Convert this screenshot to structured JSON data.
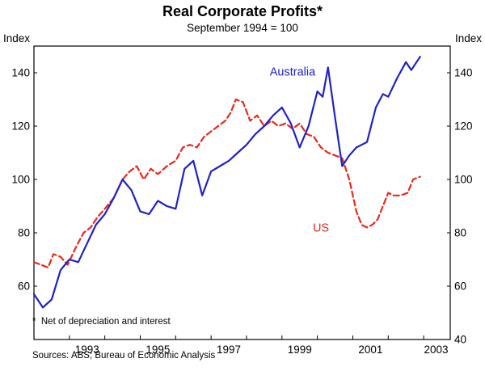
{
  "header": {
    "title": "Real Corporate Profits*",
    "subtitle": "September 1994 = 100"
  },
  "axis_units": {
    "left": "Index",
    "right": "Index"
  },
  "footnotes": {
    "note": "*  Net of depreciation and interest",
    "sources": "Sources: ABS; Bureau of Economic Analysis"
  },
  "colors": {
    "australia": "#2121c8",
    "us": "#e8291d",
    "axis": "#000000"
  },
  "chart_data": {
    "type": "line",
    "title": "Real Corporate Profits*",
    "subtitle": "September 1994 = 100",
    "y_unit": "Index",
    "ylim": [
      40,
      150
    ],
    "xlim": [
      1992,
      2003.75
    ],
    "grid": false,
    "legend": "inline-annotations",
    "y_ticks_left": [
      60,
      80,
      100,
      120,
      140
    ],
    "y_ticks_right": [
      40,
      60,
      80,
      100,
      120,
      140
    ],
    "x_ticks": [
      1993,
      1994,
      1995,
      1996,
      1997,
      1998,
      1999,
      2000,
      2001,
      2002,
      2003
    ],
    "x_tick_labels": [
      {
        "text": "1993",
        "x": 1993.5
      },
      {
        "text": "1995",
        "x": 1995.5
      },
      {
        "text": "1997",
        "x": 1997.5
      },
      {
        "text": "1999",
        "x": 1999.5
      },
      {
        "text": "2001",
        "x": 2001.5
      },
      {
        "text": "2003",
        "x": 2003.35
      }
    ],
    "series": [
      {
        "name": "US",
        "color": "#e8291d",
        "line_style": "dashed",
        "points": [
          [
            1992.0,
            69
          ],
          [
            1992.2,
            68
          ],
          [
            1992.4,
            67
          ],
          [
            1992.55,
            72
          ],
          [
            1992.75,
            71
          ],
          [
            1992.95,
            68
          ],
          [
            1993.2,
            75
          ],
          [
            1993.4,
            80
          ],
          [
            1993.6,
            82
          ],
          [
            1993.8,
            86
          ],
          [
            1994.0,
            89
          ],
          [
            1994.25,
            93
          ],
          [
            1994.5,
            100
          ],
          [
            1994.7,
            103
          ],
          [
            1994.9,
            105
          ],
          [
            1995.1,
            100
          ],
          [
            1995.3,
            104
          ],
          [
            1995.5,
            102
          ],
          [
            1995.75,
            105
          ],
          [
            1996.0,
            107
          ],
          [
            1996.2,
            112
          ],
          [
            1996.4,
            113
          ],
          [
            1996.6,
            112
          ],
          [
            1996.8,
            116
          ],
          [
            1997.0,
            118
          ],
          [
            1997.2,
            120
          ],
          [
            1997.4,
            122
          ],
          [
            1997.55,
            125
          ],
          [
            1997.7,
            130
          ],
          [
            1997.9,
            129
          ],
          [
            1998.1,
            122
          ],
          [
            1998.3,
            124
          ],
          [
            1998.5,
            120
          ],
          [
            1998.7,
            122
          ],
          [
            1998.9,
            120
          ],
          [
            1999.1,
            121
          ],
          [
            1999.3,
            119
          ],
          [
            1999.5,
            121
          ],
          [
            1999.7,
            117
          ],
          [
            1999.9,
            116
          ],
          [
            2000.1,
            112
          ],
          [
            2000.3,
            110
          ],
          [
            2000.5,
            109
          ],
          [
            2000.7,
            108
          ],
          [
            2000.9,
            100
          ],
          [
            2001.1,
            88
          ],
          [
            2001.25,
            83
          ],
          [
            2001.4,
            82
          ],
          [
            2001.55,
            83
          ],
          [
            2001.7,
            85
          ],
          [
            2001.85,
            90
          ],
          [
            2002.0,
            95
          ],
          [
            2002.15,
            94
          ],
          [
            2002.35,
            94
          ],
          [
            2002.55,
            95
          ],
          [
            2002.7,
            100
          ],
          [
            2002.9,
            101
          ]
        ]
      },
      {
        "name": "Australia",
        "color": "#2121c8",
        "line_style": "solid",
        "points": [
          [
            1992.0,
            57
          ],
          [
            1992.25,
            52
          ],
          [
            1992.5,
            55
          ],
          [
            1992.75,
            66
          ],
          [
            1993.0,
            70
          ],
          [
            1993.25,
            69
          ],
          [
            1993.5,
            76
          ],
          [
            1993.75,
            83
          ],
          [
            1994.0,
            87
          ],
          [
            1994.25,
            93
          ],
          [
            1994.5,
            100
          ],
          [
            1994.75,
            96
          ],
          [
            1995.0,
            88
          ],
          [
            1995.25,
            87
          ],
          [
            1995.5,
            92
          ],
          [
            1995.75,
            90
          ],
          [
            1996.0,
            89
          ],
          [
            1996.25,
            104
          ],
          [
            1996.5,
            107
          ],
          [
            1996.75,
            94
          ],
          [
            1997.0,
            103
          ],
          [
            1997.25,
            105
          ],
          [
            1997.5,
            107
          ],
          [
            1997.75,
            110
          ],
          [
            1998.0,
            113
          ],
          [
            1998.25,
            117
          ],
          [
            1998.5,
            120
          ],
          [
            1998.75,
            124
          ],
          [
            1999.0,
            127
          ],
          [
            1999.25,
            121
          ],
          [
            1999.5,
            112
          ],
          [
            1999.75,
            120
          ],
          [
            2000.0,
            133
          ],
          [
            2000.15,
            131
          ],
          [
            2000.3,
            142
          ],
          [
            2000.5,
            123
          ],
          [
            2000.7,
            105
          ],
          [
            2000.9,
            109
          ],
          [
            2001.1,
            112
          ],
          [
            2001.4,
            114
          ],
          [
            2001.65,
            127
          ],
          [
            2001.85,
            132
          ],
          [
            2002.0,
            131
          ],
          [
            2002.25,
            138
          ],
          [
            2002.5,
            144
          ],
          [
            2002.65,
            141
          ],
          [
            2002.9,
            146
          ]
        ]
      }
    ],
    "annotations": [
      {
        "text": "Australia",
        "x": 1999.3,
        "y": 139,
        "color": "#2121c8"
      },
      {
        "text": "US",
        "x": 2000.1,
        "y": 80.5,
        "color": "#e8291d"
      }
    ]
  }
}
